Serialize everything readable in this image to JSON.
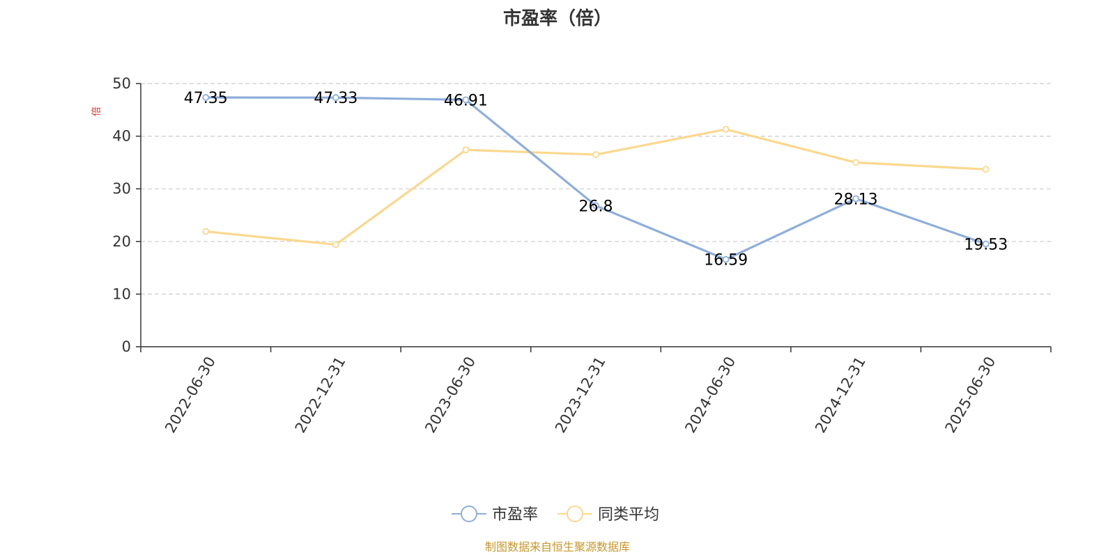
{
  "chart_data": {
    "type": "line",
    "title": "市盈率（倍）",
    "ylabel": "倍",
    "categories": [
      "2022-06-30",
      "2022-12-31",
      "2023-06-30",
      "2023-12-31",
      "2024-06-30",
      "2024-12-31",
      "2025-06-30"
    ],
    "ylim": [
      0,
      50
    ],
    "yticks": [
      0,
      10,
      20,
      30,
      40,
      50
    ],
    "grid": true,
    "legend_position": "bottom",
    "series": [
      {
        "name": "市盈率",
        "color": "#8eaedb",
        "values": [
          47.35,
          47.33,
          46.91,
          26.8,
          16.59,
          28.13,
          19.53
        ],
        "labels": [
          "47.35",
          "47.33",
          "46.91",
          "26.8",
          "16.59",
          "28.13",
          "19.53"
        ]
      },
      {
        "name": "同类平均",
        "color": "#fbd88e",
        "values": [
          21.9,
          19.4,
          37.4,
          36.5,
          41.3,
          35.0,
          33.7
        ]
      }
    ]
  },
  "source": "制图数据来自恒生聚源数据库"
}
